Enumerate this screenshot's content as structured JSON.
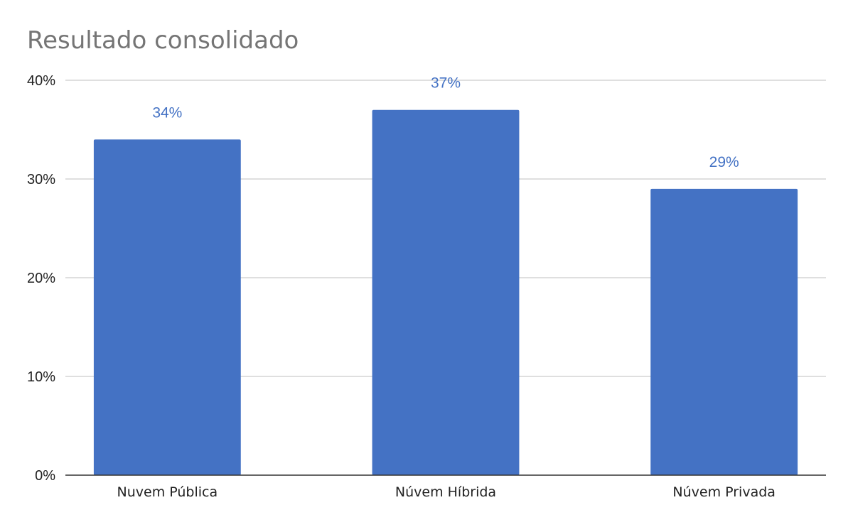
{
  "chart_data": {
    "type": "bar",
    "title": "Resultado consolidado",
    "categories": [
      "Nuvem Pública",
      "Núvem Híbrida",
      "Núvem Privada"
    ],
    "values": [
      34,
      37,
      29
    ],
    "data_labels": [
      "34%",
      "37%",
      "29%"
    ],
    "ylim": [
      0,
      40
    ],
    "yticks": [
      0,
      10,
      20,
      30,
      40
    ],
    "ytick_labels": [
      "0%",
      "10%",
      "20%",
      "30%",
      "40%"
    ],
    "xlabel": "",
    "ylabel": "",
    "grid": true,
    "legend": "none",
    "colors": {
      "bar": "#4472c4",
      "data_label": "#4472c4"
    }
  }
}
